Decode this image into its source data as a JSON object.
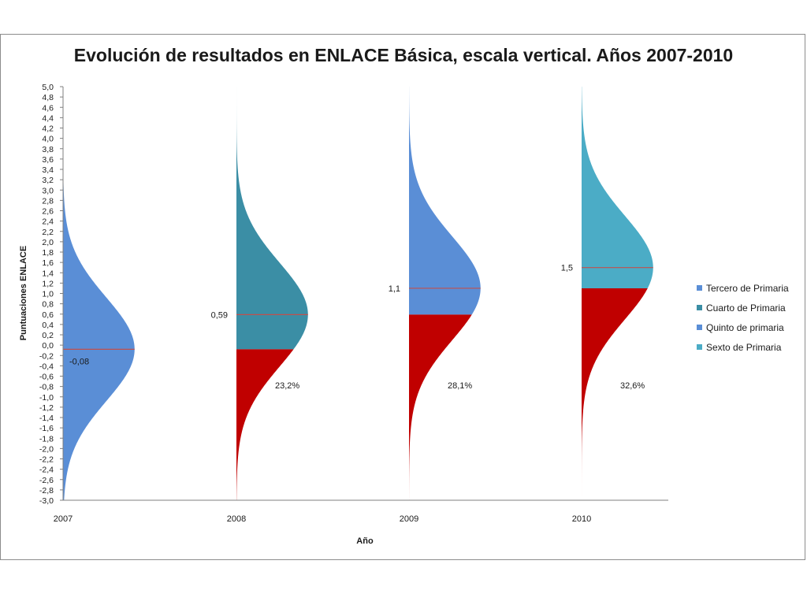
{
  "chart_data": {
    "type": "area",
    "title": "Evolución de resultados en ENLACE Básica, escala vertical. Años 2007-2010",
    "xlabel": "Año",
    "ylabel": "Puntuaciones ENLACE",
    "ylim": [
      -3.0,
      5.0
    ],
    "ytick_step": 0.2,
    "y_ticks": [
      "5,0",
      "4,8",
      "4,6",
      "4,4",
      "4,2",
      "4,0",
      "3,8",
      "3,6",
      "3,4",
      "3,2",
      "3,0",
      "2,8",
      "2,6",
      "2,4",
      "2,2",
      "2,0",
      "1,8",
      "1,6",
      "1,4",
      "1,2",
      "1,0",
      "0,8",
      "0,6",
      "0,4",
      "0,2",
      "0,0",
      "-0,2",
      "-0,4",
      "-0,6",
      "-0,8",
      "-1,0",
      "-1,2",
      "-1,4",
      "-1,6",
      "-1,8",
      "-2,0",
      "-2,2",
      "-2,4",
      "-2,6",
      "-2,8",
      "-3,0"
    ],
    "categories": [
      "2007",
      "2008",
      "2009",
      "2010"
    ],
    "legend_position": "right",
    "series": [
      {
        "name": "Tercero de Primaria",
        "year": "2007",
        "mean": -0.08,
        "mean_label": "-0,08",
        "below_threshold": null,
        "threshold_label": "",
        "color": "#5a8ed6"
      },
      {
        "name": "Cuarto de Primaria",
        "year": "2008",
        "mean": 0.59,
        "mean_label": "0,59",
        "below_threshold": -0.08,
        "threshold_label": "23,2%",
        "color": "#3b8ea5"
      },
      {
        "name": "Quinto de primaria",
        "year": "2009",
        "mean": 1.1,
        "mean_label": "1,1",
        "below_threshold": 0.59,
        "threshold_label": "28,1%",
        "color": "#5a8ed6"
      },
      {
        "name": "Sexto de Primaria",
        "year": "2010",
        "mean": 1.5,
        "mean_label": "1,5",
        "below_threshold": 1.1,
        "threshold_label": "32,6%",
        "color": "#4bacc6"
      }
    ],
    "curve_sd": 1.0,
    "curve_peak": 0.4,
    "threshold_color": "#c00000",
    "mean_line_color": "#c0504d",
    "grid": false
  }
}
